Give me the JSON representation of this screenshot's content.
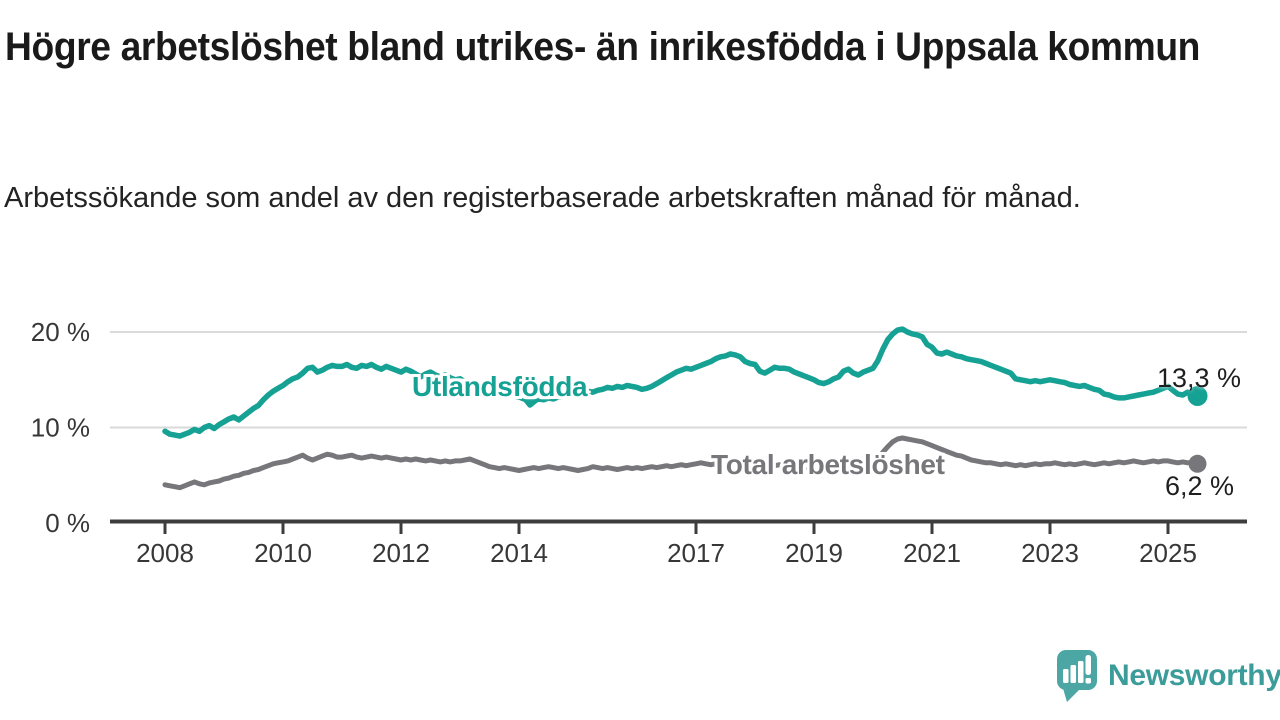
{
  "header": {
    "title": "Högre arbetslöshet bland utrikes- än inrikesfödda i Uppsala kommun",
    "subtitle": "Arbetssökande som andel av den registerbaserade arbetskraften månad för månad."
  },
  "footer": {
    "brand": "Newsworthy"
  },
  "colors": {
    "accent_teal": "#16a195",
    "series_gray": "#77777b",
    "grid": "#dadada",
    "axis": "#3d3d3d",
    "tick_text": "#373737",
    "logo_bubble_teal": "#4ba6a4",
    "logo_text_teal": "#3b9c9a"
  },
  "chart_data": {
    "type": "line",
    "unit": "%",
    "x_frequency": "monthly",
    "x_start": "2008-01",
    "x_end": "2025-07",
    "x_tick_years": [
      2008,
      2010,
      2012,
      2014,
      2017,
      2019,
      2021,
      2023,
      2025
    ],
    "x_tick_labels": [
      "2008",
      "2010",
      "2012",
      "2014",
      "2017",
      "2019",
      "2021",
      "2023",
      "2025"
    ],
    "y_ticks": [
      0,
      10,
      20
    ],
    "y_tick_labels": [
      "0 %",
      "10 %",
      "20 %"
    ],
    "ylim": [
      0,
      21.5
    ],
    "grid": "horizontal",
    "legend": "inline-labels",
    "series": [
      {
        "name": "Utlandsfödda",
        "end_label": "13,3 %",
        "end_value": 13.3,
        "color": "#16a195",
        "values": [
          9.6,
          9.3,
          9.2,
          9.1,
          9.3,
          9.5,
          9.8,
          9.6,
          10.0,
          10.2,
          9.9,
          10.3,
          10.6,
          10.9,
          11.1,
          10.8,
          11.2,
          11.6,
          12.0,
          12.3,
          12.9,
          13.4,
          13.8,
          14.1,
          14.4,
          14.8,
          15.1,
          15.3,
          15.7,
          16.2,
          16.3,
          15.8,
          16.0,
          16.3,
          16.5,
          16.4,
          16.4,
          16.6,
          16.3,
          16.2,
          16.5,
          16.4,
          16.6,
          16.3,
          16.1,
          16.4,
          16.2,
          16.0,
          15.8,
          16.1,
          15.9,
          15.6,
          15.3,
          15.6,
          15.8,
          15.5,
          15.3,
          15.5,
          15.2,
          15.0,
          15.1,
          14.8,
          14.6,
          14.4,
          14.2,
          14.4,
          14.1,
          13.9,
          13.7,
          13.5,
          13.4,
          13.3,
          13.2,
          13.0,
          12.9,
          12.8,
          13.0,
          12.9,
          13.1,
          13.0,
          13.2,
          13.3,
          13.4,
          13.5,
          13.4,
          13.6,
          13.8,
          13.7,
          13.9,
          14.0,
          14.2,
          14.1,
          14.3,
          14.2,
          14.4,
          14.3,
          14.2,
          14.0,
          14.1,
          14.3,
          14.6,
          14.9,
          15.2,
          15.5,
          15.8,
          16.0,
          16.2,
          16.1,
          16.3,
          16.5,
          16.7,
          16.9,
          17.2,
          17.4,
          17.5,
          17.7,
          17.6,
          17.4,
          16.9,
          16.7,
          16.6,
          15.9,
          15.7,
          16.0,
          16.3,
          16.2,
          16.2,
          16.1,
          15.8,
          15.6,
          15.4,
          15.2,
          15.0,
          14.7,
          14.6,
          14.8,
          15.1,
          15.3,
          15.9,
          16.1,
          15.7,
          15.5,
          15.8,
          16.0,
          16.2,
          17.0,
          18.2,
          19.2,
          19.8,
          20.2,
          20.3,
          20.0,
          19.8,
          19.7,
          19.5,
          18.7,
          18.4,
          17.8,
          17.7,
          17.9,
          17.7,
          17.5,
          17.4,
          17.2,
          17.1,
          17.0,
          16.9,
          16.7,
          16.5,
          16.3,
          16.1,
          15.9,
          15.7,
          15.1,
          15.0,
          14.9,
          14.8,
          14.9,
          14.8,
          14.9,
          15.0,
          14.9,
          14.8,
          14.7,
          14.5,
          14.4,
          14.3,
          14.4,
          14.2,
          14.0,
          13.9,
          13.5,
          13.4,
          13.2,
          13.1,
          13.1,
          13.2,
          13.3,
          13.4,
          13.5,
          13.6,
          13.7,
          13.9,
          14.1,
          14.3,
          13.9,
          13.5,
          13.4,
          13.7,
          13.5,
          13.3
        ]
      },
      {
        "name": "Total arbetslöshet",
        "end_label": "6,2 %",
        "end_value": 6.2,
        "color": "#77777b",
        "values": [
          4.0,
          3.9,
          3.8,
          3.7,
          3.9,
          4.1,
          4.3,
          4.1,
          4.0,
          4.2,
          4.3,
          4.4,
          4.6,
          4.7,
          4.9,
          5.0,
          5.2,
          5.3,
          5.5,
          5.6,
          5.8,
          6.0,
          6.2,
          6.3,
          6.4,
          6.5,
          6.7,
          6.9,
          7.1,
          6.8,
          6.6,
          6.8,
          7.0,
          7.2,
          7.1,
          6.9,
          6.9,
          7.0,
          7.1,
          6.9,
          6.8,
          6.9,
          7.0,
          6.9,
          6.8,
          6.9,
          6.8,
          6.7,
          6.6,
          6.7,
          6.6,
          6.7,
          6.6,
          6.5,
          6.6,
          6.5,
          6.4,
          6.5,
          6.4,
          6.5,
          6.5,
          6.6,
          6.7,
          6.5,
          6.3,
          6.1,
          5.9,
          5.8,
          5.7,
          5.8,
          5.7,
          5.6,
          5.5,
          5.6,
          5.7,
          5.8,
          5.7,
          5.8,
          5.9,
          5.8,
          5.7,
          5.8,
          5.7,
          5.6,
          5.5,
          5.6,
          5.7,
          5.9,
          5.8,
          5.7,
          5.8,
          5.7,
          5.6,
          5.7,
          5.8,
          5.7,
          5.8,
          5.7,
          5.8,
          5.9,
          5.8,
          5.9,
          6.0,
          5.9,
          6.0,
          6.1,
          6.0,
          6.1,
          6.2,
          6.3,
          6.2,
          6.1,
          6.2,
          6.3,
          6.4,
          6.3,
          6.2,
          6.1,
          6.2,
          6.1,
          6.0,
          5.9,
          5.8,
          5.9,
          6.0,
          6.1,
          6.0,
          5.9,
          5.8,
          5.9,
          5.8,
          5.9,
          6.0,
          5.9,
          6.0,
          6.1,
          6.2,
          6.3,
          6.4,
          6.3,
          6.2,
          6.3,
          6.2,
          6.3,
          6.4,
          6.7,
          7.4,
          8.0,
          8.5,
          8.8,
          8.9,
          8.8,
          8.7,
          8.6,
          8.5,
          8.3,
          8.1,
          7.9,
          7.7,
          7.5,
          7.3,
          7.1,
          7.0,
          6.8,
          6.6,
          6.5,
          6.4,
          6.3,
          6.3,
          6.2,
          6.1,
          6.2,
          6.1,
          6.0,
          6.1,
          6.0,
          6.1,
          6.2,
          6.1,
          6.2,
          6.2,
          6.3,
          6.2,
          6.1,
          6.2,
          6.1,
          6.2,
          6.3,
          6.2,
          6.1,
          6.2,
          6.3,
          6.2,
          6.3,
          6.4,
          6.3,
          6.4,
          6.5,
          6.4,
          6.3,
          6.4,
          6.5,
          6.4,
          6.5,
          6.5,
          6.4,
          6.3,
          6.4,
          6.3,
          6.3,
          6.2
        ]
      }
    ]
  }
}
